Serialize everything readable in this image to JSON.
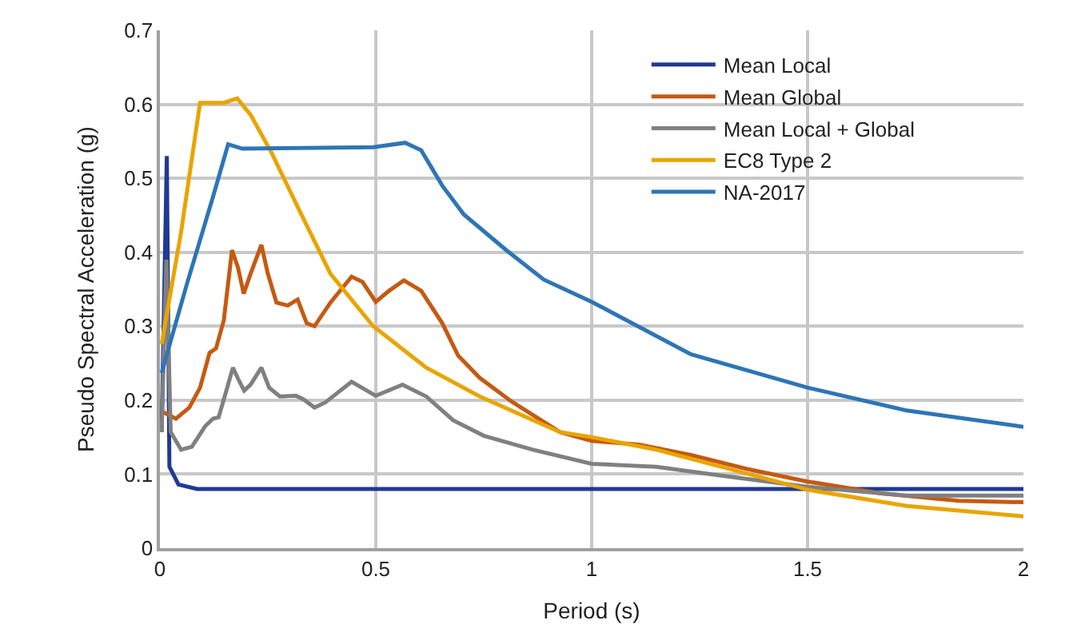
{
  "chart_data": {
    "type": "line",
    "xlabel": "Period (s)",
    "ylabel": "Pseudo Spectral Acceleration (g)",
    "xlim": [
      0,
      2
    ],
    "xticks": [
      0,
      0.5,
      1,
      1.5,
      2
    ],
    "ylim": [
      0,
      0.7
    ],
    "yticks": [
      0,
      0.1,
      0.2,
      0.3,
      0.4,
      0.5,
      0.6,
      0.7
    ],
    "grid": true,
    "legend": "top right",
    "marker": "none",
    "line_style": "solid",
    "series": [
      {
        "name": "Mean Local",
        "color": "#1f3a93",
        "x": [
          0.004,
          0.016,
          0.022,
          0.043,
          0.086,
          2.0
        ],
        "values": [
          0.157,
          0.53,
          0.11,
          0.086,
          0.08,
          0.08
        ]
      },
      {
        "name": "Mean Global",
        "color": "#c55a11",
        "x": [
          0.004,
          0.037,
          0.068,
          0.093,
          0.115,
          0.13,
          0.148,
          0.167,
          0.181,
          0.194,
          0.21,
          0.235,
          0.25,
          0.27,
          0.296,
          0.319,
          0.34,
          0.358,
          0.395,
          0.444,
          0.469,
          0.5,
          0.531,
          0.565,
          0.605,
          0.654,
          0.691,
          0.741,
          0.815,
          0.926,
          1.0,
          1.11,
          1.23,
          1.36,
          1.5,
          1.67,
          1.85,
          2.0
        ],
        "values": [
          0.185,
          0.175,
          0.19,
          0.217,
          0.264,
          0.27,
          0.308,
          0.403,
          0.379,
          0.344,
          0.371,
          0.41,
          0.371,
          0.332,
          0.328,
          0.336,
          0.304,
          0.3,
          0.332,
          0.367,
          0.36,
          0.333,
          0.348,
          0.362,
          0.348,
          0.304,
          0.26,
          0.23,
          0.198,
          0.157,
          0.145,
          0.14,
          0.126,
          0.107,
          0.09,
          0.074,
          0.064,
          0.062
        ]
      },
      {
        "name": "Mean Local + Global",
        "color": "#808080",
        "x": [
          0.004,
          0.015,
          0.025,
          0.049,
          0.074,
          0.105,
          0.123,
          0.136,
          0.154,
          0.169,
          0.181,
          0.195,
          0.21,
          0.235,
          0.253,
          0.278,
          0.315,
          0.333,
          0.358,
          0.383,
          0.444,
          0.5,
          0.562,
          0.617,
          0.679,
          0.75,
          0.864,
          1.0,
          1.15,
          1.3,
          1.5,
          1.73,
          2.0
        ],
        "values": [
          0.157,
          0.39,
          0.157,
          0.133,
          0.137,
          0.165,
          0.175,
          0.177,
          0.213,
          0.244,
          0.229,
          0.213,
          0.221,
          0.244,
          0.217,
          0.205,
          0.206,
          0.201,
          0.19,
          0.197,
          0.225,
          0.206,
          0.221,
          0.205,
          0.173,
          0.152,
          0.133,
          0.114,
          0.11,
          0.098,
          0.083,
          0.071,
          0.071
        ]
      },
      {
        "name": "EC8 Type 2",
        "color": "#e8a500",
        "x": [
          0.004,
          0.049,
          0.093,
          0.148,
          0.179,
          0.21,
          0.259,
          0.321,
          0.395,
          0.494,
          0.617,
          0.741,
          0.926,
          1.0,
          1.15,
          1.3,
          1.5,
          1.73,
          2.0
        ],
        "values": [
          0.276,
          0.427,
          0.602,
          0.602,
          0.608,
          0.586,
          0.534,
          0.459,
          0.371,
          0.3,
          0.244,
          0.205,
          0.157,
          0.15,
          0.133,
          0.11,
          0.079,
          0.057,
          0.043
        ]
      },
      {
        "name": "NA-2017",
        "color": "#2e75b6",
        "x": [
          0.004,
          0.062,
          0.123,
          0.158,
          0.191,
          0.494,
          0.568,
          0.605,
          0.654,
          0.704,
          0.802,
          0.889,
          1.0,
          1.23,
          1.5,
          1.73,
          2.0
        ],
        "values": [
          0.237,
          0.356,
          0.475,
          0.546,
          0.54,
          0.542,
          0.548,
          0.538,
          0.49,
          0.451,
          0.403,
          0.363,
          0.333,
          0.262,
          0.217,
          0.186,
          0.164
        ]
      }
    ]
  }
}
